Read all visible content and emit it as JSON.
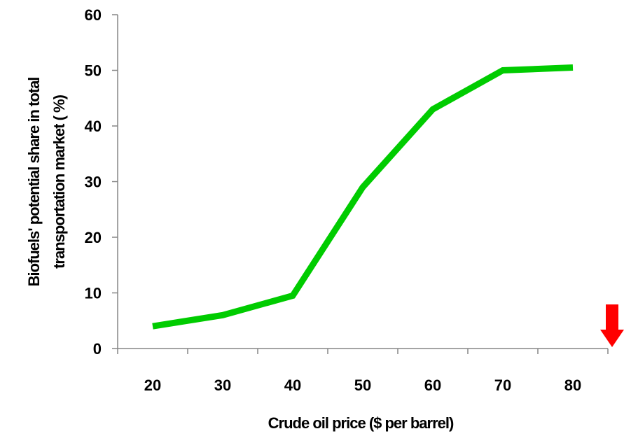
{
  "chart_data": {
    "type": "line",
    "x": [
      20,
      30,
      40,
      50,
      60,
      70,
      80
    ],
    "series": [
      {
        "values": [
          4,
          6,
          9.5,
          29,
          43,
          50,
          50.5
        ]
      }
    ],
    "xlabel": "Crude oil price ($ per barrel)",
    "ylabel_lines": [
      "Biofuels' potential share in total",
      "transportation market ( %)"
    ],
    "ylim": [
      0,
      60
    ],
    "yticks": [
      0,
      10,
      20,
      30,
      40,
      50,
      60
    ],
    "xtick_labels": [
      "20",
      "30",
      "40",
      "50",
      "60",
      "70",
      "80"
    ],
    "grid": false,
    "legend": "none",
    "line_color": "#00CC00",
    "marker": {
      "shape": "down-arrow",
      "color": "#FF0000",
      "location": "bottom-right"
    }
  }
}
